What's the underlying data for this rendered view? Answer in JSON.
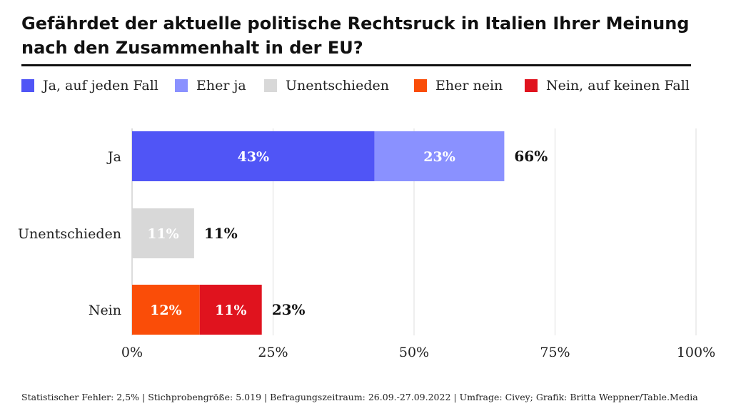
{
  "chart_data": {
    "type": "bar",
    "orientation": "horizontal",
    "stacked": true,
    "title": "Gefährdet der aktuelle politische Rechtsruck in Italien Ihrer Meinung nach den Zusammenhalt in der EU?",
    "categories": [
      "Ja",
      "Unentschieden",
      "Nein"
    ],
    "series": [
      {
        "name": "Ja, auf jeden Fall",
        "color": "#5055f6",
        "values": [
          43,
          0,
          0
        ],
        "labels": [
          "43%",
          "",
          ""
        ]
      },
      {
        "name": "Eher ja",
        "color": "#8a91ff",
        "values": [
          23,
          0,
          0
        ],
        "labels": [
          "23%",
          "",
          ""
        ]
      },
      {
        "name": "Unentschieden",
        "color": "#d8d8d8",
        "values": [
          0,
          11,
          0
        ],
        "labels": [
          "",
          "11%",
          ""
        ]
      },
      {
        "name": "Eher nein",
        "color": "#fa4d08",
        "values": [
          0,
          0,
          12
        ],
        "labels": [
          "",
          "",
          "12%"
        ]
      },
      {
        "name": "Nein, auf keinen Fall",
        "color": "#e0131e",
        "values": [
          0,
          0,
          11
        ],
        "labels": [
          "",
          "",
          "11%"
        ]
      }
    ],
    "totals": [
      "66%",
      "11%",
      "23%"
    ],
    "xlim": [
      0,
      100
    ],
    "xticks": [
      0,
      25,
      50,
      75,
      100
    ],
    "xtick_labels": [
      "0%",
      "25%",
      "50%",
      "75%",
      "100%"
    ],
    "xlabel": "",
    "ylabel": "",
    "grid": true,
    "legend_position": "top"
  },
  "footnote": "Statistischer Fehler: 2,5% | Stichprobengröße: 5.019 | Befragungszeitraum: 26.09.-27.09.2022 | Umfrage: Civey; Grafik: Britta Weppner/Table.Media"
}
